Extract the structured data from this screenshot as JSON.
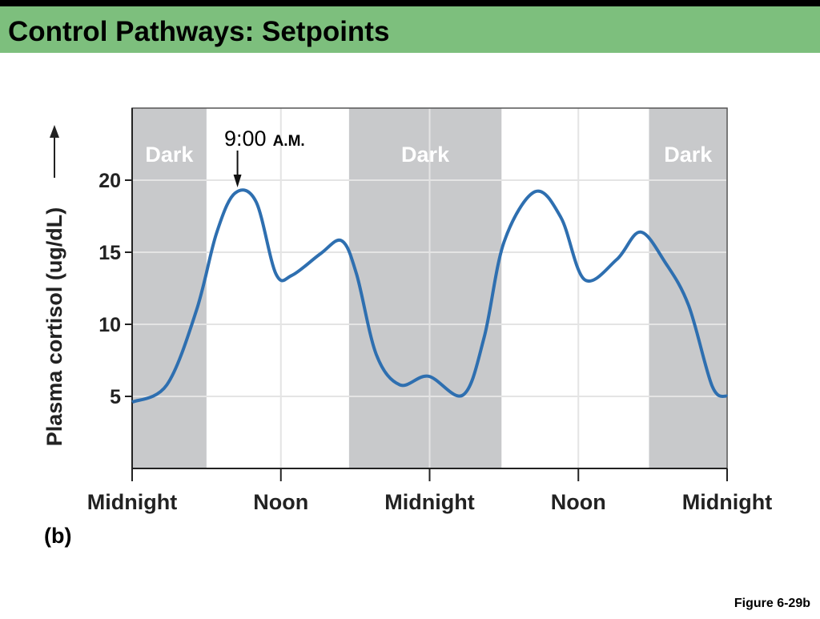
{
  "header": {
    "title": "Control Pathways: Setpoints"
  },
  "chart_data": {
    "type": "line",
    "y_label": "Plasma cortisol (ug/dL)",
    "panel_label": "(b)",
    "figure_label": "Figure 6-29b",
    "annotation": {
      "time": "9:00",
      "period": "A.M.",
      "x": 8.5
    },
    "dark_periods": [
      {
        "label": "Dark",
        "range": [
          0,
          6
        ]
      },
      {
        "label": "Dark",
        "range": [
          17.5,
          29.8
        ]
      },
      {
        "label": "Dark",
        "range": [
          41.7,
          48
        ]
      }
    ],
    "x": [
      0,
      2.8,
      5.2,
      6.8,
      8.3,
      10,
      11.6,
      12.9,
      15.2,
      16.9,
      18.1,
      19.7,
      21.6,
      23.9,
      26.7,
      28.4,
      30,
      32.5,
      34.6,
      36.5,
      39.1,
      41,
      43,
      44.9,
      46.8,
      48
    ],
    "series": [
      {
        "name": "Plasma cortisol",
        "color": "#2e6fb0",
        "values": [
          4.6,
          5.8,
          11,
          16.3,
          19.1,
          18.5,
          13.5,
          13.4,
          14.9,
          15.8,
          13.5,
          7.9,
          5.8,
          6.4,
          5.1,
          9.1,
          15.7,
          19.2,
          17.4,
          13.1,
          14.5,
          16.4,
          14.3,
          11.3,
          5.7,
          5.0
        ]
      }
    ],
    "xlim": [
      0,
      48
    ],
    "xticks": [
      {
        "value": 0,
        "label": "Midnight"
      },
      {
        "value": 12,
        "label": "Noon"
      },
      {
        "value": 24,
        "label": "Midnight"
      },
      {
        "value": 36,
        "label": "Noon"
      },
      {
        "value": 48,
        "label": "Midnight"
      }
    ],
    "ylim": [
      0,
      25
    ],
    "yticks": [
      5,
      10,
      15,
      20
    ],
    "grid": true
  }
}
